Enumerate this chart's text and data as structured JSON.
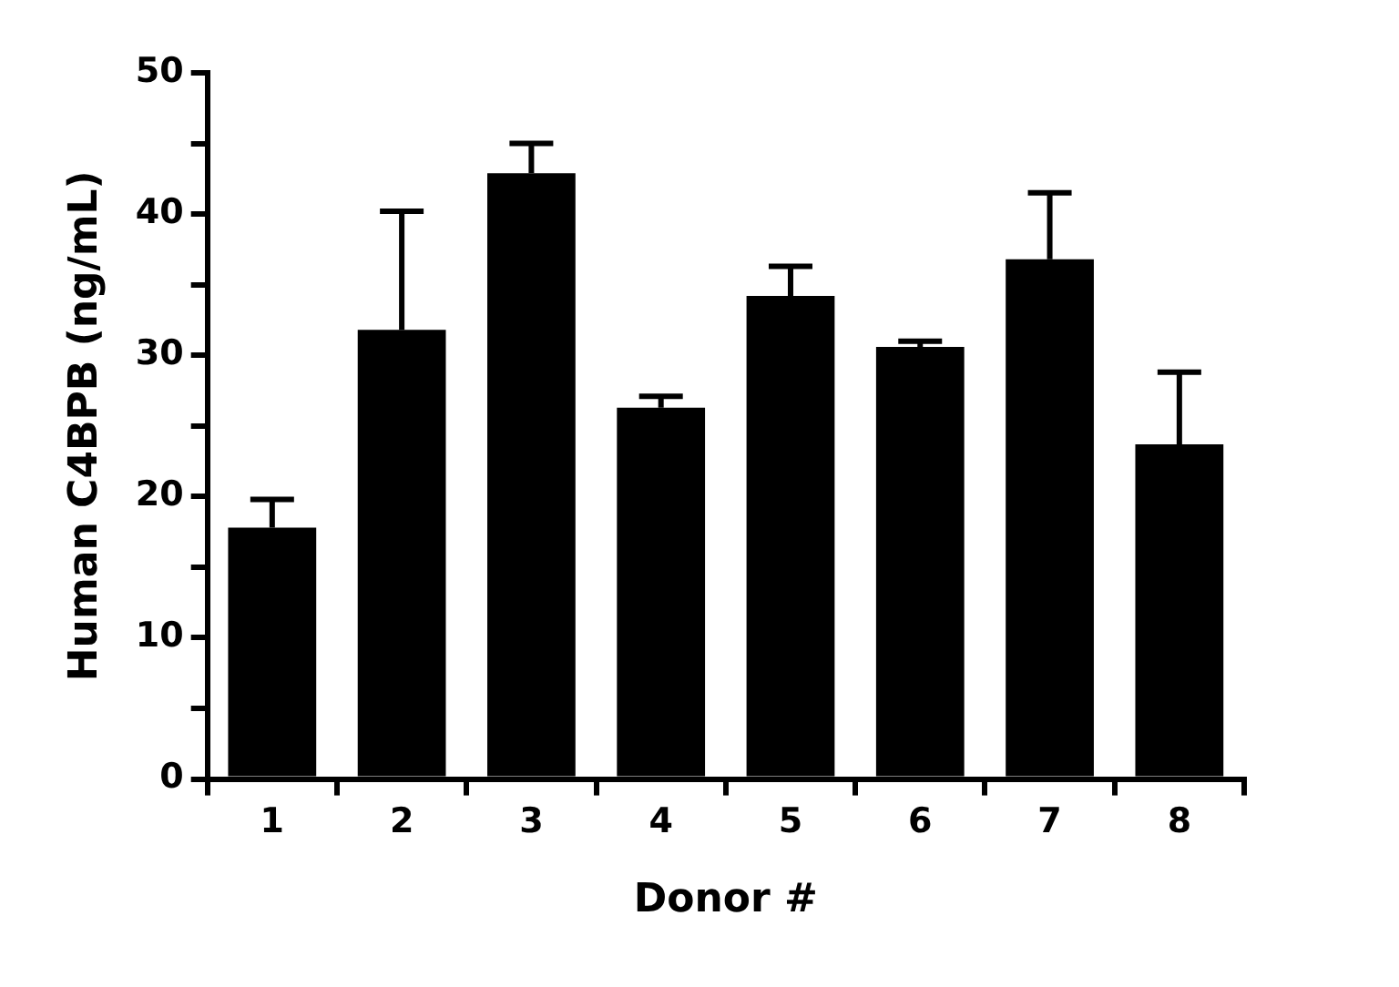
{
  "chart_data": {
    "type": "bar",
    "xlabel": "Donor #",
    "ylabel": "Human C4BPB (ng/mL)",
    "categories": [
      "1",
      "2",
      "3",
      "4",
      "5",
      "6",
      "7",
      "8"
    ],
    "values": [
      17.8,
      31.8,
      42.9,
      26.3,
      34.2,
      30.6,
      36.8,
      23.7
    ],
    "errors": [
      [
        17.8,
        19.8
      ],
      [
        31.8,
        40.2
      ],
      [
        42.9,
        45.0
      ],
      [
        26.3,
        27.1
      ],
      [
        34.2,
        36.3
      ],
      [
        30.6,
        31.0
      ],
      [
        36.8,
        41.5
      ],
      [
        23.7,
        28.8
      ]
    ],
    "color": "#000000",
    "ylim": [
      0,
      50
    ],
    "yticks": [
      0,
      {
        "value": 5,
        "label": null
      },
      10,
      {
        "value": 15,
        "label": null
      },
      20,
      {
        "value": 25,
        "label": null
      },
      30,
      {
        "value": 35,
        "label": null
      },
      40,
      {
        "value": 45,
        "label": null
      },
      50
    ],
    "grid": false,
    "legend": false
  }
}
